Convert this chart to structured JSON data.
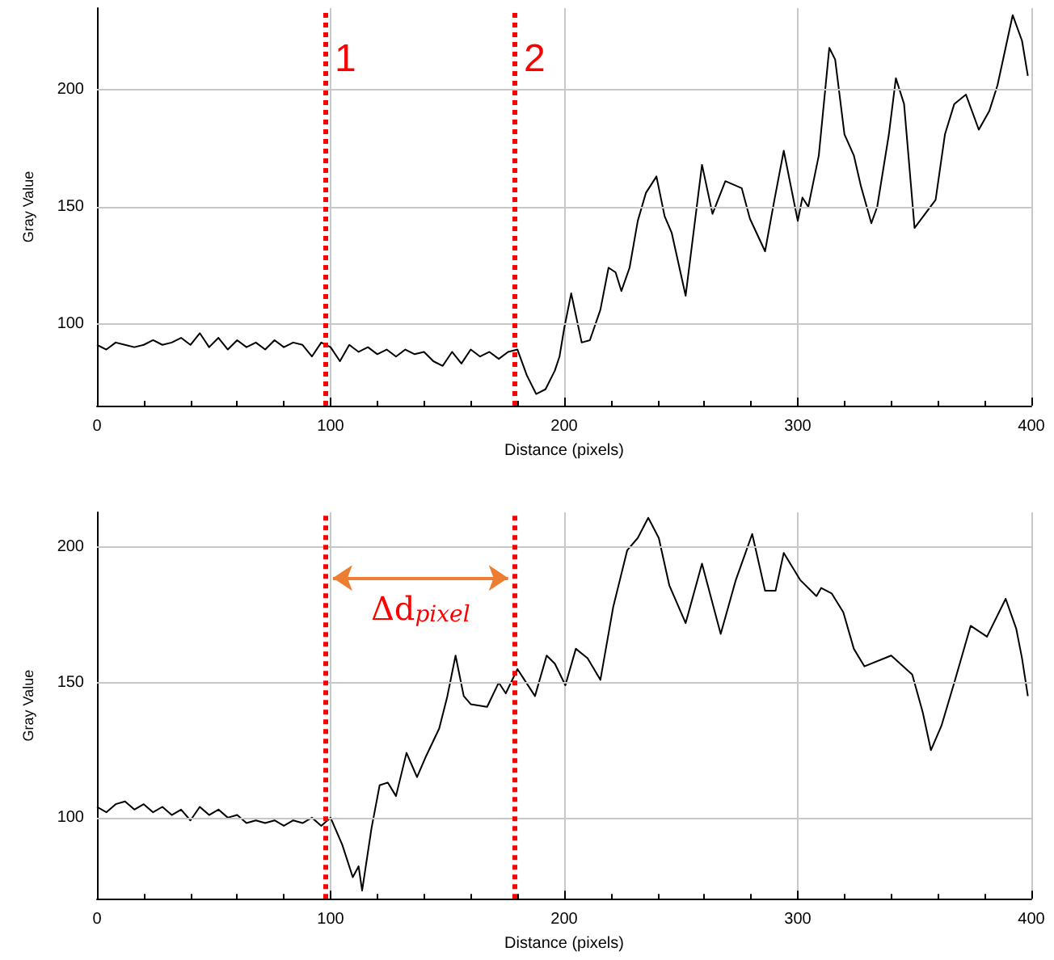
{
  "chart_data": [
    {
      "type": "line",
      "xlabel": "Distance (pixels)",
      "ylabel": "Gray Value",
      "xlim": [
        0,
        400
      ],
      "ylim": [
        65,
        235
      ],
      "xticks": [
        0,
        100,
        200,
        300,
        400
      ],
      "yticks": [
        100,
        150,
        200
      ],
      "grid": true,
      "series": [
        {
          "color": "#000000",
          "x": [
            0,
            4,
            8,
            12,
            16,
            20,
            24,
            28,
            32,
            36,
            40,
            44,
            48,
            52,
            56,
            60,
            64,
            68,
            72,
            76,
            80,
            84,
            88,
            92,
            96,
            100,
            104,
            108,
            112,
            116,
            120,
            124,
            128,
            132,
            136,
            140,
            144,
            148,
            152,
            156,
            160,
            164,
            168,
            172,
            176,
            180,
            184,
            188,
            192,
            196,
            198,
            200,
            203,
            207.5,
            211,
            215.5,
            219,
            222,
            224.5,
            228,
            231.5,
            235,
            239.5,
            243,
            246,
            252,
            259,
            263.5,
            269,
            276,
            279.5,
            286,
            290,
            294,
            300,
            302,
            304.5,
            309,
            313.5,
            316,
            320,
            324,
            327,
            331.5,
            334,
            339,
            342,
            345.5,
            350,
            356,
            359,
            363,
            367,
            372,
            377.5,
            382,
            385.5,
            392,
            396,
            398.5
          ],
          "values": [
            91,
            89,
            92,
            91,
            90,
            91,
            93,
            91,
            92,
            94,
            91,
            96,
            90,
            94,
            89,
            93,
            90,
            92,
            89,
            93,
            90,
            92,
            91,
            86,
            92,
            90,
            84,
            91,
            88,
            90,
            87,
            89,
            86,
            89,
            87,
            88,
            84,
            82,
            88,
            83,
            89,
            86,
            88,
            85,
            88,
            89,
            78,
            70,
            72,
            80,
            86,
            98,
            113,
            92,
            93,
            106,
            124,
            122,
            114,
            124,
            144,
            156,
            163,
            146,
            139,
            112,
            168,
            147,
            161,
            158,
            145,
            131,
            153,
            174,
            144,
            154,
            150,
            172,
            218,
            213,
            181,
            172,
            159,
            143,
            150,
            181,
            205,
            194,
            141,
            149,
            153,
            181,
            194,
            198,
            183,
            191,
            202,
            232,
            221,
            206
          ]
        }
      ],
      "ref_lines": [
        {
          "axis": "x",
          "value": 98,
          "color": "#ff0000",
          "line_style": "dotted"
        },
        {
          "axis": "x",
          "value": 179,
          "color": "#ff0000",
          "line_style": "dotted"
        }
      ],
      "annotations": [
        {
          "text": "1",
          "x": 98,
          "y": 205
        },
        {
          "text": "2",
          "x": 179,
          "y": 205
        }
      ]
    },
    {
      "type": "line",
      "xlabel": "Distance (pixels)",
      "ylabel": "Gray Value",
      "xlim": [
        0,
        400
      ],
      "ylim": [
        70,
        213
      ],
      "xticks": [
        0,
        100,
        200,
        300,
        400
      ],
      "yticks": [
        100,
        150,
        200
      ],
      "grid": true,
      "series": [
        {
          "color": "#000000",
          "x": [
            0,
            4,
            8,
            12,
            16,
            20,
            24,
            28,
            32,
            36,
            40,
            44,
            48,
            52,
            56,
            60,
            64,
            68,
            72,
            76,
            80,
            84,
            88,
            92,
            96,
            100,
            105,
            109.5,
            112,
            113.5,
            117.5,
            121,
            124.5,
            128,
            132.5,
            137,
            141,
            146.5,
            150,
            153.5,
            157,
            160,
            167,
            172,
            175,
            180,
            183,
            187.5,
            192.5,
            196,
            200.5,
            205,
            210,
            215.5,
            221,
            227,
            231.5,
            236,
            240.5,
            245,
            252,
            259,
            267,
            273.5,
            280.5,
            286,
            290.5,
            294,
            301,
            308,
            310,
            314.5,
            319.5,
            324,
            328.5,
            340,
            349,
            353.5,
            357,
            361.5,
            367,
            374,
            381,
            389,
            393.5,
            396,
            398.5
          ],
          "values": [
            104,
            102,
            105,
            106,
            103,
            105,
            102,
            104,
            101,
            103,
            99,
            104,
            101,
            103,
            100,
            101,
            98,
            99,
            98,
            99,
            97,
            99,
            98,
            100,
            97,
            100,
            90,
            78,
            82,
            73,
            96,
            112,
            113,
            108,
            124,
            115,
            123,
            133,
            145,
            160,
            145,
            142,
            141,
            150,
            146,
            155,
            151,
            145,
            160,
            157,
            149,
            162.5,
            159,
            151,
            178,
            199,
            203.5,
            211,
            203.5,
            186,
            172,
            194,
            168,
            188,
            205,
            184,
            184,
            198,
            188,
            182,
            185,
            183,
            176,
            162.5,
            156,
            160,
            153,
            139,
            125,
            134,
            150,
            171,
            167,
            181,
            170,
            159,
            145
          ]
        }
      ],
      "ref_lines": [
        {
          "axis": "x",
          "value": 98,
          "label": null,
          "color": "#ff0000",
          "line_style": "dotted"
        },
        {
          "axis": "x",
          "value": 179,
          "label": null,
          "color": "#ff0000",
          "line_style": "dotted"
        }
      ],
      "annotations": [
        "Δd$_{pixel}$"
      ]
    }
  ]
}
